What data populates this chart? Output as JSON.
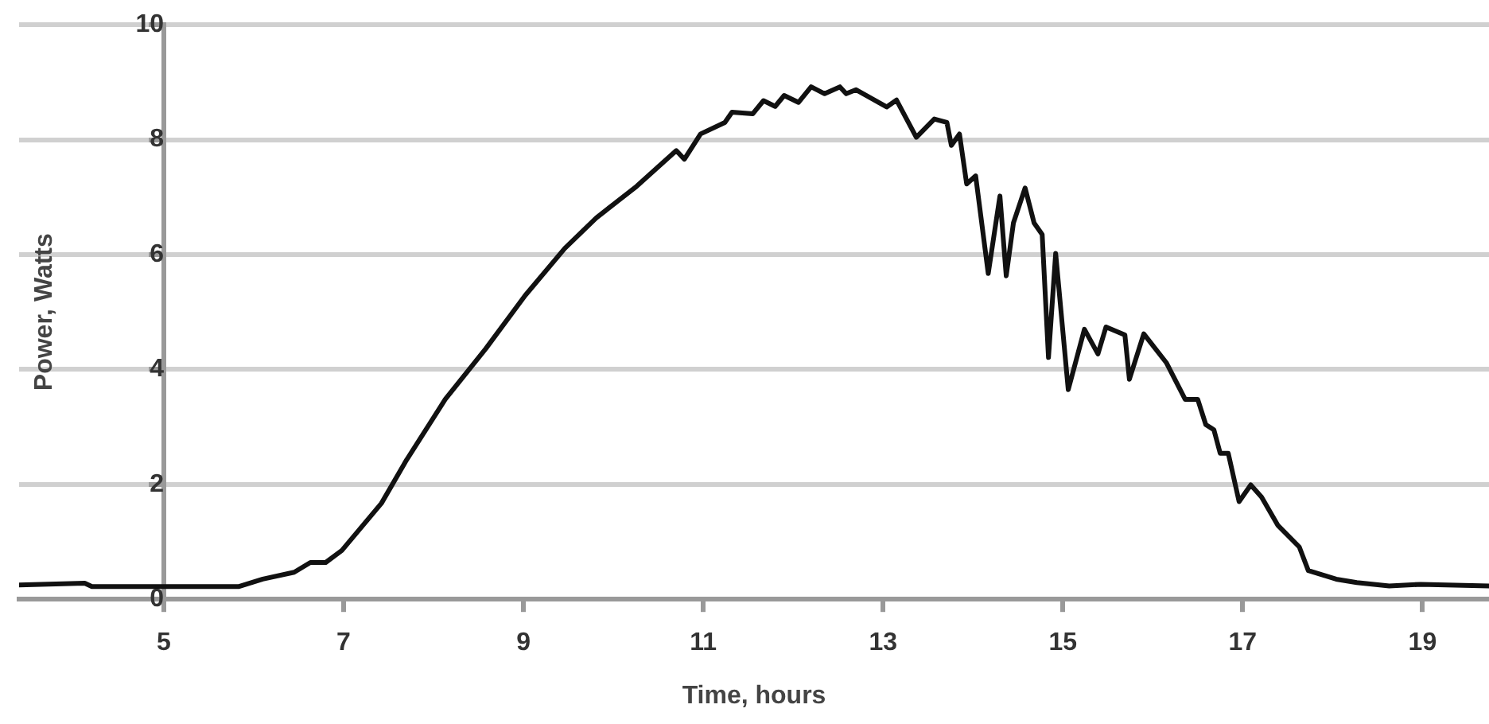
{
  "chart_data": {
    "type": "line",
    "xlabel": "Time, hours",
    "ylabel": "Power, Watts",
    "x": [
      3.39,
      4.12,
      4.2,
      5.83,
      6.1,
      6.45,
      6.63,
      6.8,
      6.98,
      7.42,
      7.69,
      8.13,
      8.58,
      9.02,
      9.46,
      9.81,
      10.26,
      10.7,
      10.79,
      10.97,
      11.24,
      11.32,
      11.55,
      11.67,
      11.8,
      11.9,
      12.06,
      12.2,
      12.35,
      12.52,
      12.59,
      12.7,
      13.04,
      13.15,
      13.37,
      13.57,
      13.71,
      13.76,
      13.85,
      13.93,
      14.03,
      14.17,
      14.3,
      14.37,
      14.45,
      14.58,
      14.68,
      14.77,
      14.84,
      14.92,
      15.06,
      15.24,
      15.39,
      15.48,
      15.69,
      15.74,
      15.9,
      16.15,
      16.36,
      16.5,
      16.59,
      16.68,
      16.75,
      16.84,
      16.96,
      17.09,
      17.21,
      17.39,
      17.63,
      17.73,
      18.04,
      18.27,
      18.63,
      18.98,
      19.74
    ],
    "series": [
      {
        "color": "#111111",
        "values": [
          0.25,
          0.28,
          0.22,
          0.22,
          0.35,
          0.47,
          0.64,
          0.64,
          0.85,
          1.67,
          2.4,
          3.48,
          4.36,
          5.29,
          6.11,
          6.64,
          7.19,
          7.81,
          7.66,
          8.1,
          8.3,
          8.48,
          8.45,
          8.68,
          8.58,
          8.77,
          8.65,
          8.92,
          8.8,
          8.92,
          8.8,
          8.87,
          8.57,
          8.69,
          8.04,
          8.36,
          8.3,
          7.9,
          8.1,
          7.23,
          7.37,
          5.67,
          7.02,
          5.63,
          6.55,
          7.16,
          6.55,
          6.35,
          4.21,
          6.02,
          3.65,
          4.7,
          4.27,
          4.74,
          4.6,
          3.83,
          4.62,
          4.12,
          3.48,
          3.48,
          3.04,
          2.95,
          2.54,
          2.54,
          1.7,
          1.99,
          1.78,
          1.29,
          0.91,
          0.5,
          0.35,
          0.29,
          0.23,
          0.26,
          0.23
        ]
      }
    ],
    "xlim": [
      3.39,
      19.74
    ],
    "xticks": [
      5,
      7,
      9,
      11,
      13,
      15,
      17,
      19
    ],
    "ylim": [
      0,
      10
    ],
    "yticks": [
      0,
      2,
      4,
      6,
      8,
      10
    ],
    "grid": "y",
    "legend": false,
    "marker": "none",
    "line_style": "solid"
  }
}
